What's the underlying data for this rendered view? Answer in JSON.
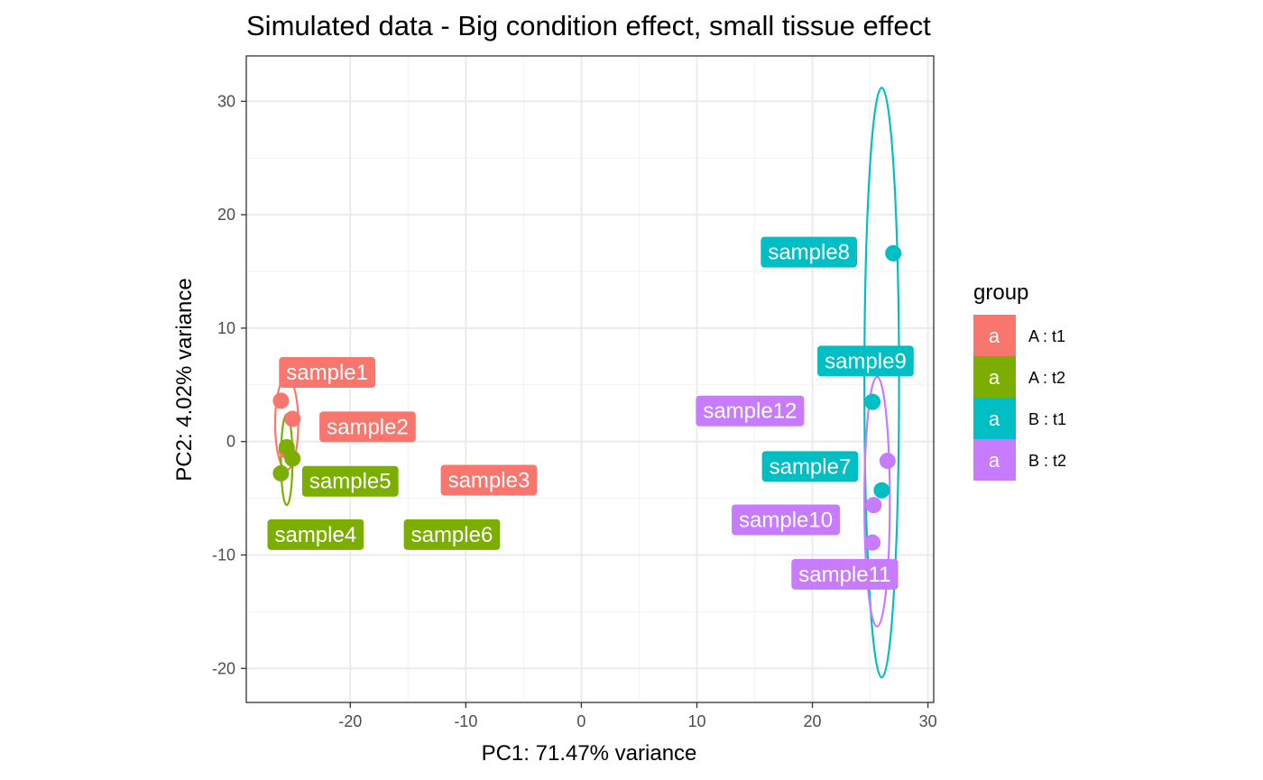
{
  "chart_data": {
    "type": "scatter",
    "title": "Simulated data - Big condition effect, small tissue effect",
    "xlabel": "PC1: 71.47% variance",
    "ylabel": "PC2: 4.02% variance",
    "xlim": [
      -29,
      30.5
    ],
    "ylim": [
      -23,
      34
    ],
    "x_ticks": [
      -20,
      -10,
      0,
      10,
      20,
      30
    ],
    "y_ticks": [
      -20,
      -10,
      0,
      10,
      20,
      30
    ],
    "x_tick_labels": [
      "-20",
      "-10",
      "0",
      "10",
      "20",
      "30"
    ],
    "y_tick_labels": [
      "-20",
      "-10",
      "0",
      "10",
      "20",
      "30"
    ],
    "grid": true,
    "legend": {
      "title": "group",
      "placement": "right",
      "key_glyph": "a",
      "entries": [
        {
          "label": "A : t1",
          "color": "#F8766D"
        },
        {
          "label": "A : t2",
          "color": "#7CAE00"
        },
        {
          "label": "B : t1",
          "color": "#00BFC4"
        },
        {
          "label": "B : t2",
          "color": "#C77CFF"
        }
      ]
    },
    "points": [
      {
        "name": "sample1",
        "group": "A : t1",
        "x": -26.0,
        "y": 3.6,
        "label_x": -22.0,
        "label_y": 6.1
      },
      {
        "name": "sample2",
        "group": "A : t1",
        "x": -25.0,
        "y": 2.0,
        "label_x": -18.5,
        "label_y": 1.3
      },
      {
        "name": "sample3",
        "group": "A : t1",
        "x": -25.5,
        "y": -0.8,
        "label_x": -8.0,
        "label_y": -3.4
      },
      {
        "name": "sample4",
        "group": "A : t2",
        "x": -26.0,
        "y": -2.8,
        "label_x": -23.0,
        "label_y": -8.2
      },
      {
        "name": "sample5",
        "group": "A : t2",
        "x": -25.5,
        "y": -0.5,
        "label_x": -20.0,
        "label_y": -3.5
      },
      {
        "name": "sample6",
        "group": "A : t2",
        "x": -25.0,
        "y": -1.5,
        "label_x": -11.2,
        "label_y": -8.2
      },
      {
        "name": "sample7",
        "group": "B : t1",
        "x": 26.0,
        "y": -4.3,
        "label_x": 19.8,
        "label_y": -2.2
      },
      {
        "name": "sample8",
        "group": "B : t1",
        "x": 27.0,
        "y": 16.6,
        "label_x": 19.7,
        "label_y": 16.7
      },
      {
        "name": "sample9",
        "group": "B : t1",
        "x": 25.2,
        "y": 3.5,
        "label_x": 24.6,
        "label_y": 7.1
      },
      {
        "name": "sample10",
        "group": "B : t2",
        "x": 25.3,
        "y": -5.6,
        "label_x": 17.7,
        "label_y": -6.9
      },
      {
        "name": "sample11",
        "group": "B : t2",
        "x": 25.2,
        "y": -8.9,
        "label_x": 22.8,
        "label_y": -11.7
      },
      {
        "name": "sample12",
        "group": "B : t2",
        "x": 26.5,
        "y": -1.7,
        "label_x": 14.6,
        "label_y": 2.7
      }
    ],
    "ellipses": [
      {
        "group": "A : t1",
        "cx": -25.5,
        "cy": 1.6,
        "rx": 1.0,
        "ry": 4.1,
        "angle": 0
      },
      {
        "group": "A : t2",
        "cx": -25.5,
        "cy": -1.6,
        "rx": 0.5,
        "ry": 4.0,
        "angle": 0
      },
      {
        "group": "B : t1",
        "cx": 26.0,
        "cy": 5.2,
        "rx": 1.5,
        "ry": 26.0,
        "angle": 0
      },
      {
        "group": "B : t2",
        "cx": 25.6,
        "cy": -5.3,
        "rx": 1.1,
        "ry": 11.0,
        "angle": 0
      }
    ]
  }
}
